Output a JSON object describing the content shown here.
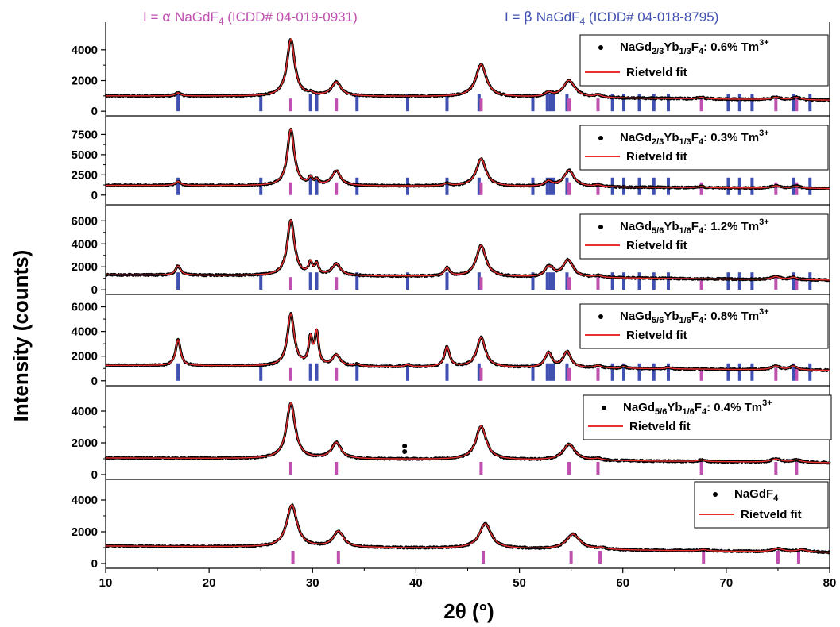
{
  "header": {
    "alpha": {
      "prefix": "I = ",
      "greek": "α",
      "compound_main": " NaGdF",
      "compound_sub": "4",
      "ref": " (ICDD# 04-019-0931)",
      "color": "#c050b0"
    },
    "beta": {
      "prefix": "I = ",
      "greek": "β",
      "compound_main": " NaGdF",
      "compound_sub": "4",
      "ref": " (ICDD# 04-018-8795)",
      "color": "#4050b0"
    }
  },
  "colors": {
    "observed": "#000000",
    "fit": "#e83030",
    "alpha_tick": "#c050b0",
    "beta_tick": "#4050b0"
  },
  "fit_label": "Rietveld fit",
  "chart_data": {
    "type": "line",
    "xlabel": "2θ (°)",
    "ylabel": "Intensity (counts)",
    "xlim": [
      10,
      80
    ],
    "xticks": [
      10,
      20,
      30,
      40,
      50,
      60,
      70,
      80
    ],
    "alpha_tick_positions": [
      27.9,
      32.3,
      46.3,
      54.8,
      57.6,
      67.6,
      74.8,
      76.8
    ],
    "beta_tick_positions": [
      17.0,
      25.0,
      29.8,
      30.4,
      34.3,
      39.2,
      43.0,
      46.1,
      51.3,
      52.7,
      53.0,
      53.3,
      54.6,
      59.0,
      60.1,
      61.6,
      63.0,
      64.4,
      70.2,
      71.3,
      72.5,
      76.5,
      78.1
    ],
    "panels": [
      {
        "label": {
          "main": "NaGd",
          "sub1": "2/3",
          "mid": "Yb",
          "sub2": "1/3",
          "tail1": "F",
          "sub3": "4",
          "tail2": ": 0.6% Tm",
          "sup": "3+"
        },
        "ylim": [
          -300,
          5800
        ],
        "yticks": [
          0,
          2000,
          4000
        ],
        "ytick_labels": [
          "0",
          "2000",
          "4000"
        ],
        "has_beta": true,
        "baseline": [
          [
            10,
            1000
          ],
          [
            45,
            950
          ],
          [
            80,
            720
          ]
        ],
        "peaks": [
          [
            17.0,
            200,
            0.3
          ],
          [
            27.9,
            3700,
            0.45
          ],
          [
            29.8,
            150,
            0.25
          ],
          [
            32.3,
            900,
            0.55
          ],
          [
            46.3,
            2100,
            0.6
          ],
          [
            52.8,
            250,
            0.4
          ],
          [
            54.8,
            1100,
            0.7
          ],
          [
            57.6,
            150,
            0.4
          ],
          [
            67.6,
            100,
            0.4
          ],
          [
            74.8,
            150,
            0.5
          ],
          [
            76.8,
            150,
            0.5
          ]
        ]
      },
      {
        "label": {
          "main": "NaGd",
          "sub1": "2/3",
          "mid": "Yb",
          "sub2": "1/3",
          "tail1": "F",
          "sub3": "4",
          "tail2": ": 0.3% Tm",
          "sup": "3+"
        },
        "ylim": [
          -1200,
          9800
        ],
        "yticks": [
          0,
          2500,
          5000,
          7500
        ],
        "ytick_labels": [
          "0",
          "2500",
          "5000",
          "7500"
        ],
        "has_beta": true,
        "baseline": [
          [
            10,
            1200
          ],
          [
            45,
            1100
          ],
          [
            80,
            800
          ]
        ],
        "peaks": [
          [
            17.0,
            500,
            0.3
          ],
          [
            27.9,
            7000,
            0.4
          ],
          [
            29.8,
            800,
            0.22
          ],
          [
            30.4,
            600,
            0.22
          ],
          [
            32.3,
            1800,
            0.5
          ],
          [
            43.0,
            300,
            0.3
          ],
          [
            46.3,
            3400,
            0.55
          ],
          [
            52.8,
            600,
            0.4
          ],
          [
            54.8,
            2000,
            0.6
          ],
          [
            57.6,
            200,
            0.4
          ],
          [
            67.6,
            150,
            0.4
          ],
          [
            74.8,
            300,
            0.5
          ],
          [
            76.8,
            250,
            0.5
          ]
        ]
      },
      {
        "label": {
          "main": "NaGd",
          "sub1": "5/6",
          "mid": "Yb",
          "sub2": "1/6",
          "tail1": "F",
          "sub3": "4",
          "tail2": ": 1.2% Tm",
          "sup": "3+"
        },
        "ylim": [
          -400,
          7400
        ],
        "yticks": [
          0,
          2000,
          4000,
          6000
        ],
        "ytick_labels": [
          "0",
          "2000",
          "4000",
          "6000"
        ],
        "has_beta": true,
        "baseline": [
          [
            10,
            1300
          ],
          [
            45,
            1150
          ],
          [
            80,
            850
          ]
        ],
        "peaks": [
          [
            17.0,
            800,
            0.3
          ],
          [
            27.9,
            4800,
            0.42
          ],
          [
            29.8,
            1000,
            0.22
          ],
          [
            30.4,
            900,
            0.22
          ],
          [
            32.3,
            1000,
            0.5
          ],
          [
            43.0,
            700,
            0.3
          ],
          [
            46.3,
            2700,
            0.55
          ],
          [
            52.7,
            600,
            0.35
          ],
          [
            53.1,
            500,
            0.35
          ],
          [
            54.7,
            1500,
            0.6
          ],
          [
            57.6,
            150,
            0.4
          ],
          [
            74.8,
            250,
            0.5
          ],
          [
            76.5,
            200,
            0.4
          ]
        ]
      },
      {
        "label": {
          "main": "NaGd",
          "sub1": "5/6",
          "mid": "Yb",
          "sub2": "1/6",
          "tail1": "F",
          "sub3": "4",
          "tail2": ": 0.8% Tm",
          "sup": "3+"
        },
        "ylim": [
          -400,
          7000
        ],
        "yticks": [
          0,
          2000,
          4000,
          6000
        ],
        "ytick_labels": [
          "0",
          "2000",
          "4000",
          "6000"
        ],
        "has_beta": true,
        "baseline": [
          [
            10,
            1250
          ],
          [
            45,
            1100
          ],
          [
            80,
            850
          ]
        ],
        "peaks": [
          [
            17.0,
            2100,
            0.28
          ],
          [
            27.9,
            4200,
            0.4
          ],
          [
            29.8,
            2100,
            0.22
          ],
          [
            30.4,
            2600,
            0.22
          ],
          [
            32.3,
            900,
            0.45
          ],
          [
            34.3,
            150,
            0.3
          ],
          [
            39.2,
            150,
            0.3
          ],
          [
            43.0,
            1600,
            0.3
          ],
          [
            46.3,
            2400,
            0.5
          ],
          [
            52.8,
            1200,
            0.4
          ],
          [
            54.6,
            1300,
            0.45
          ],
          [
            57.6,
            200,
            0.4
          ],
          [
            60.1,
            150,
            0.3
          ],
          [
            64.4,
            100,
            0.3
          ],
          [
            74.8,
            300,
            0.5
          ],
          [
            76.5,
            300,
            0.4
          ]
        ]
      },
      {
        "label": {
          "main": "NaGd",
          "sub1": "5/6",
          "mid": "Yb",
          "sub2": "1/6",
          "tail1": "F",
          "sub3": "4",
          "tail2": ": 0.4% Tm",
          "sup": "3+"
        },
        "ylim": [
          -300,
          5600
        ],
        "yticks": [
          0,
          2000,
          4000
        ],
        "ytick_labels": [
          "0",
          "2000",
          "4000"
        ],
        "has_beta": false,
        "baseline": [
          [
            10,
            1050
          ],
          [
            45,
            950
          ],
          [
            80,
            750
          ]
        ],
        "peaks": [
          [
            27.9,
            3500,
            0.5
          ],
          [
            32.3,
            1000,
            0.55
          ],
          [
            46.3,
            2100,
            0.6
          ],
          [
            54.8,
            1000,
            0.7
          ],
          [
            57.6,
            100,
            0.4
          ],
          [
            67.6,
            100,
            0.4
          ],
          [
            74.8,
            200,
            0.6
          ],
          [
            76.8,
            150,
            0.5
          ]
        ],
        "spike": [
          38.9,
          1800
        ]
      },
      {
        "label": {
          "main": "NaGdF",
          "sub3": "4"
        },
        "ylim": [
          -300,
          5300
        ],
        "yticks": [
          0,
          2000,
          4000
        ],
        "ytick_labels": [
          "0",
          "2000",
          "4000"
        ],
        "has_beta": false,
        "baseline": [
          [
            10,
            1100
          ],
          [
            45,
            950
          ],
          [
            80,
            700
          ]
        ],
        "peaks": [
          [
            28.0,
            2650,
            0.6
          ],
          [
            32.5,
            1000,
            0.6
          ],
          [
            46.7,
            1550,
            0.7
          ],
          [
            55.2,
            950,
            0.8
          ],
          [
            57.9,
            100,
            0.5
          ],
          [
            67.8,
            80,
            0.5
          ],
          [
            75.0,
            200,
            0.6
          ],
          [
            77.3,
            150,
            0.6
          ]
        ]
      }
    ]
  }
}
